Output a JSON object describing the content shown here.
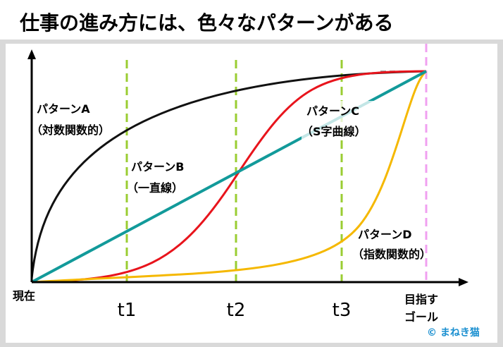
{
  "title": "仕事の進み方には、色々なパターンがある",
  "patterns": [
    {
      "name": "パターンA",
      "note": "（対数関数的）"
    },
    {
      "name": "パターンB",
      "note": "（一直線）"
    },
    {
      "name": "パターンC",
      "note": "（S字曲線）"
    },
    {
      "name": "パターンD",
      "note": "（指数関数的）"
    }
  ],
  "x_axis": {
    "start": "現在",
    "ticks": [
      "t1",
      "t2",
      "t3"
    ],
    "goal": [
      "目指す",
      "ゴール"
    ]
  },
  "credit": "© まねき猫"
}
